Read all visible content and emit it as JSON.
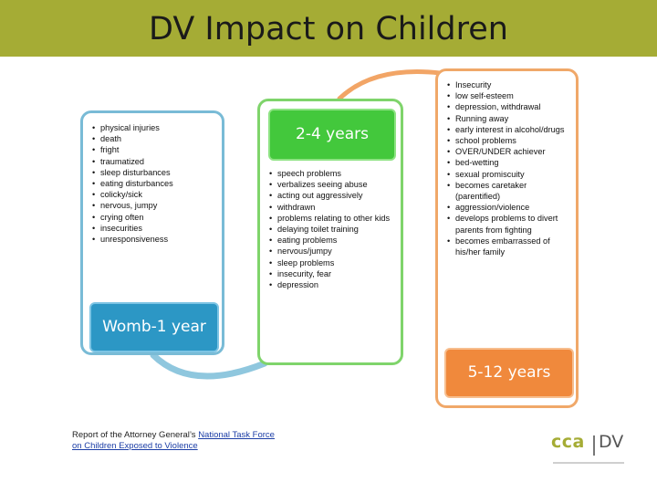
{
  "header": {
    "title": "DV Impact on Children"
  },
  "panels": [
    {
      "label": "Womb-1 year",
      "items": [
        "physical injuries",
        "death",
        "fright",
        "traumatized",
        "sleep disturbances",
        "eating disturbances",
        "colicky/sick",
        "nervous, jumpy",
        "crying often",
        "insecurities",
        "unresponsiveness"
      ]
    },
    {
      "label": "2-4 years",
      "items": [
        "speech problems",
        "verbalizes seeing abuse",
        "acting out aggressively",
        "withdrawn",
        "problems relating to other kids",
        "delaying toilet training",
        "eating problems",
        "nervous/jumpy",
        "sleep problems",
        "insecurity, fear",
        "depression"
      ]
    },
    {
      "label": "5-12 years",
      "items": [
        "Insecurity",
        "low self-esteem",
        "depression, withdrawal",
        "Running away",
        "early interest in alcohol/drugs",
        "school problems",
        "OVER/UNDER achiever",
        "bed-wetting",
        "sexual promiscuity",
        "becomes caretaker (parentified)",
        "aggression/violence",
        "develops problems to divert parents from fighting",
        "becomes embarrassed of his/her family"
      ]
    }
  ],
  "colors": {
    "title_bar": "#a5ac35",
    "blue": "#2c97c5",
    "green": "#43c83c",
    "orange": "#f0893c"
  },
  "source": {
    "prefix": "Report of the Attorney General’s ",
    "link_1": "National Task Force",
    "link_2": "on Children Exposed to Violence"
  },
  "logo": {
    "left": "cca",
    "right": "DV"
  }
}
